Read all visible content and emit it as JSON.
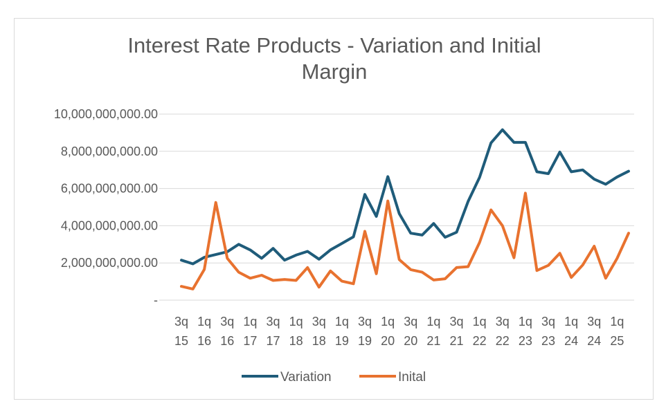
{
  "chart_data": {
    "type": "line",
    "title_line1": "Interest Rate Products - Variation and Initial",
    "title_line2": "Margin",
    "ylim": [
      0,
      10000000000
    ],
    "y_ticks": [
      {
        "value": 0,
        "label": "-"
      },
      {
        "value": 2000000000,
        "label": "2,000,000,000.00"
      },
      {
        "value": 4000000000,
        "label": "4,000,000,000.00"
      },
      {
        "value": 6000000000,
        "label": "6,000,000,000.00"
      },
      {
        "value": 8000000000,
        "label": "8,000,000,000.00"
      },
      {
        "value": 10000000000,
        "label": "10,000,000,000.00"
      }
    ],
    "x_tick_labels": [
      {
        "index": 0,
        "line1": "3q",
        "line2": "15"
      },
      {
        "index": 2,
        "line1": "1q",
        "line2": "16"
      },
      {
        "index": 4,
        "line1": "3q",
        "line2": "16"
      },
      {
        "index": 6,
        "line1": "1q",
        "line2": "17"
      },
      {
        "index": 8,
        "line1": "3q",
        "line2": "17"
      },
      {
        "index": 10,
        "line1": "1q",
        "line2": "18"
      },
      {
        "index": 12,
        "line1": "3q",
        "line2": "18"
      },
      {
        "index": 14,
        "line1": "1q",
        "line2": "19"
      },
      {
        "index": 16,
        "line1": "3q",
        "line2": "19"
      },
      {
        "index": 18,
        "line1": "1q",
        "line2": "20"
      },
      {
        "index": 20,
        "line1": "3q",
        "line2": "20"
      },
      {
        "index": 22,
        "line1": "1q",
        "line2": "21"
      },
      {
        "index": 24,
        "line1": "3q",
        "line2": "21"
      },
      {
        "index": 26,
        "line1": "1q",
        "line2": "22"
      },
      {
        "index": 28,
        "line1": "3q",
        "line2": "22"
      },
      {
        "index": 30,
        "line1": "1q",
        "line2": "23"
      },
      {
        "index": 32,
        "line1": "3q",
        "line2": "23"
      },
      {
        "index": 34,
        "line1": "1q",
        "line2": "24"
      },
      {
        "index": 36,
        "line1": "3q",
        "line2": "24"
      },
      {
        "index": 38,
        "line1": "1q",
        "line2": "25"
      }
    ],
    "num_points": 40,
    "series": [
      {
        "name": "Variation",
        "color": "#1f5c7a",
        "values": [
          2150000000,
          1950000000,
          2300000000,
          2450000000,
          2600000000,
          3000000000,
          2700000000,
          2250000000,
          2780000000,
          2150000000,
          2420000000,
          2620000000,
          2200000000,
          2700000000,
          3050000000,
          3400000000,
          5680000000,
          4500000000,
          6640000000,
          4650000000,
          3600000000,
          3500000000,
          4120000000,
          3380000000,
          3650000000,
          5300000000,
          6600000000,
          8450000000,
          9160000000,
          8480000000,
          8480000000,
          6900000000,
          6800000000,
          7960000000,
          6900000000,
          7000000000,
          6500000000,
          6230000000,
          6620000000,
          6930000000
        ]
      },
      {
        "name": "Inital",
        "color": "#e8722f",
        "values": [
          740000000,
          600000000,
          1650000000,
          5250000000,
          2250000000,
          1500000000,
          1180000000,
          1340000000,
          1060000000,
          1110000000,
          1060000000,
          1750000000,
          700000000,
          1570000000,
          1020000000,
          880000000,
          3700000000,
          1420000000,
          5330000000,
          2180000000,
          1640000000,
          1500000000,
          1080000000,
          1150000000,
          1750000000,
          1800000000,
          3100000000,
          4850000000,
          4000000000,
          2280000000,
          5750000000,
          1590000000,
          1870000000,
          2520000000,
          1220000000,
          1890000000,
          2900000000,
          1180000000,
          2250000000,
          3600000000
        ]
      }
    ],
    "legend_position": "bottom",
    "grid": true
  }
}
